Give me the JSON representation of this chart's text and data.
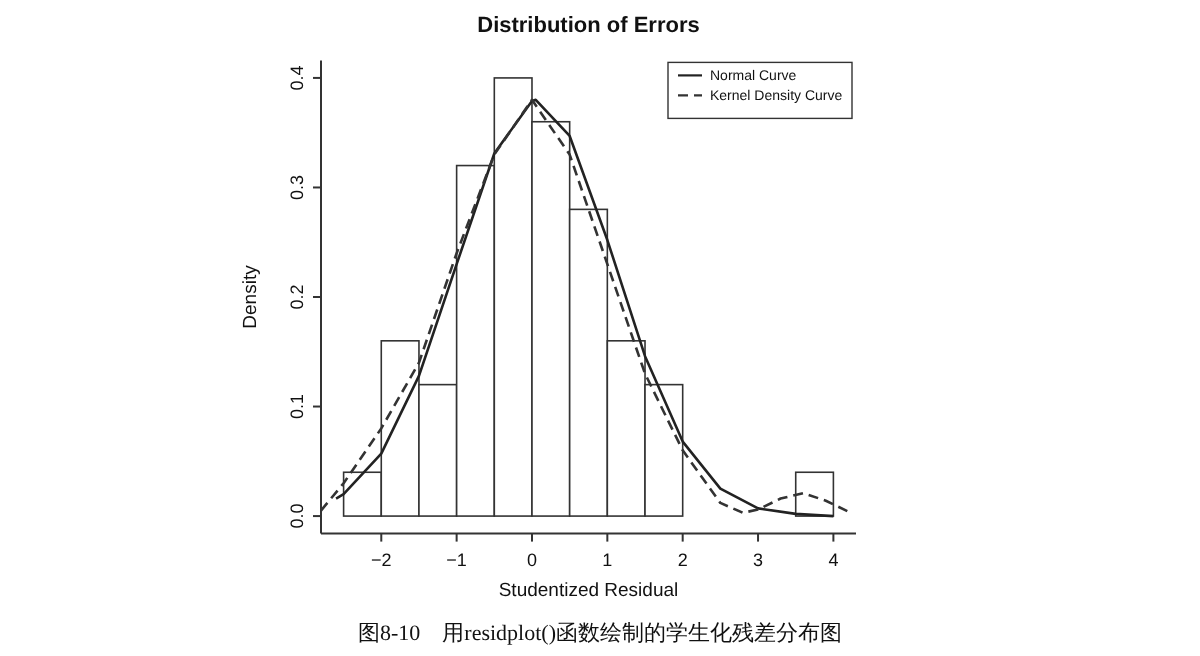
{
  "chart_data": {
    "type": "histogram",
    "title": "Distribution of Errors",
    "xlabel": "Studentized Residual",
    "ylabel": "Density",
    "xlim": [
      -2.8,
      4.3
    ],
    "ylim": [
      -0.016,
      0.416
    ],
    "xticks": [
      -2,
      -1,
      0,
      1,
      2,
      3,
      4
    ],
    "yticks": [
      {
        "value": 0,
        "label": "0.0"
      },
      {
        "value": 0.1,
        "label": "0.1"
      },
      {
        "value": 0.2,
        "label": "0.2"
      },
      {
        "value": 0.3,
        "label": "0.3"
      },
      {
        "value": 0.4,
        "label": "0.4"
      }
    ],
    "grid": false,
    "legend": "top right",
    "series": [
      {
        "color": "#ffffff",
        "bins": [
          -2.5,
          -2,
          -1.5,
          -1,
          -0.5,
          0,
          0.5,
          1,
          1.5,
          2,
          2.5,
          3,
          3.5,
          4
        ],
        "values": [
          0.04,
          0.16,
          0.12,
          0.32,
          0.4,
          0.36,
          0.28,
          0.16,
          0.12,
          0,
          0,
          0,
          0.04
        ]
      },
      {
        "type": "line",
        "name": "Normal Curve",
        "color": "#222222",
        "line_style": "solid",
        "x": [
          -2.6,
          -2.5,
          -2.0,
          -1.5,
          -1.0,
          -0.5,
          0,
          0.05,
          0.5,
          1.0,
          1.5,
          2.0,
          2.5,
          3.0,
          3.5,
          4.0
        ],
        "values": [
          0.016,
          0.02,
          0.057,
          0.128,
          0.23,
          0.331,
          0.379,
          0.38,
          0.347,
          0.252,
          0.146,
          0.068,
          0.025,
          0.007,
          0.002,
          0.0
        ]
      },
      {
        "type": "line",
        "name": "Kernel Density Curve",
        "color": "#333333",
        "line_style": "dashed",
        "x": [
          -2.8,
          -2.5,
          -2.0,
          -1.5,
          -1.0,
          -0.5,
          0,
          0.5,
          1.0,
          1.5,
          2.0,
          2.5,
          2.8,
          3.0,
          3.3,
          3.6,
          3.9,
          4.2
        ],
        "values": [
          0.005,
          0.03,
          0.08,
          0.14,
          0.24,
          0.33,
          0.38,
          0.33,
          0.23,
          0.13,
          0.06,
          0.012,
          0.003,
          0.006,
          0.016,
          0.021,
          0.014,
          0.004
        ]
      }
    ],
    "annotations": [
      "图8-10　用residplot()函数绘制的学生化残差分布图"
    ]
  }
}
